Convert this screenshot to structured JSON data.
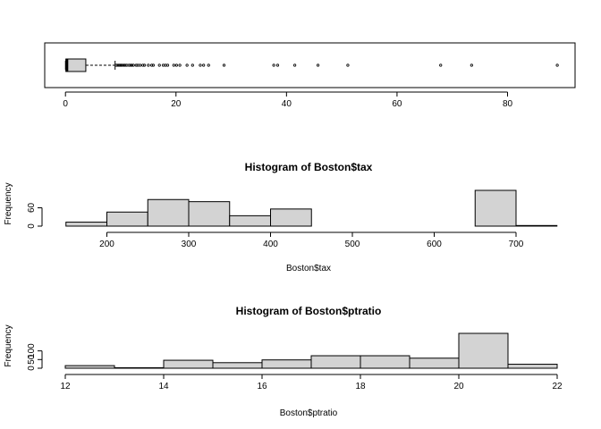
{
  "chart_data": [
    {
      "type": "boxplot",
      "orientation": "horizontal",
      "xlim": [
        0,
        90
      ],
      "x_ticks": [
        0,
        20,
        40,
        60,
        80
      ],
      "box": {
        "min": 0.006,
        "q1": 0.08,
        "median": 0.26,
        "q3": 3.68,
        "whisker_high": 8.98
      },
      "outliers": [
        9.2,
        9.5,
        9.7,
        9.9,
        10.1,
        10.3,
        10.6,
        10.8,
        11.1,
        11.5,
        11.8,
        12.0,
        12.3,
        12.8,
        13.1,
        13.5,
        14.0,
        14.3,
        15.0,
        15.6,
        15.9,
        17.0,
        17.7,
        18.1,
        18.5,
        19.6,
        20.1,
        20.7,
        22.0,
        23.0,
        24.4,
        25.0,
        25.9,
        28.7,
        37.7,
        38.4,
        41.5,
        45.7,
        51.1,
        67.9,
        73.5,
        89.0
      ]
    },
    {
      "type": "bar",
      "title": "Histogram of Boston$tax",
      "xlabel": "Boston$tax",
      "ylabel": "Frequency",
      "bins": [
        {
          "start": 150,
          "end": 200,
          "count": 13
        },
        {
          "start": 200,
          "end": 250,
          "count": 46
        },
        {
          "start": 250,
          "end": 300,
          "count": 87
        },
        {
          "start": 300,
          "end": 350,
          "count": 80
        },
        {
          "start": 350,
          "end": 400,
          "count": 34
        },
        {
          "start": 400,
          "end": 450,
          "count": 56
        },
        {
          "start": 450,
          "end": 500,
          "count": 0
        },
        {
          "start": 500,
          "end": 550,
          "count": 0
        },
        {
          "start": 550,
          "end": 600,
          "count": 0
        },
        {
          "start": 600,
          "end": 650,
          "count": 0
        },
        {
          "start": 650,
          "end": 700,
          "count": 117
        },
        {
          "start": 700,
          "end": 750,
          "count": 2
        }
      ],
      "x_ticks": [
        200,
        300,
        400,
        500,
        600,
        700
      ],
      "y_ticks": [
        0,
        60
      ],
      "xlim": [
        150,
        750
      ],
      "ylim": [
        0,
        117
      ]
    },
    {
      "type": "bar",
      "title": "Histogram of Boston$ptratio",
      "xlabel": "Boston$ptratio",
      "ylabel": "Frequency",
      "bins": [
        {
          "start": 12,
          "end": 13,
          "count": 15
        },
        {
          "start": 13,
          "end": 14,
          "count": 3
        },
        {
          "start": 14,
          "end": 15,
          "count": 46
        },
        {
          "start": 15,
          "end": 16,
          "count": 32
        },
        {
          "start": 16,
          "end": 17,
          "count": 48
        },
        {
          "start": 17,
          "end": 18,
          "count": 72
        },
        {
          "start": 18,
          "end": 19,
          "count": 72
        },
        {
          "start": 19,
          "end": 20,
          "count": 58
        },
        {
          "start": 20,
          "end": 21,
          "count": 201
        },
        {
          "start": 21,
          "end": 22,
          "count": 23
        }
      ],
      "x_ticks": [
        12,
        14,
        16,
        18,
        20,
        22
      ],
      "y_ticks": [
        0,
        50,
        100
      ],
      "xlim": [
        12,
        22
      ],
      "ylim": [
        0,
        201
      ]
    }
  ]
}
